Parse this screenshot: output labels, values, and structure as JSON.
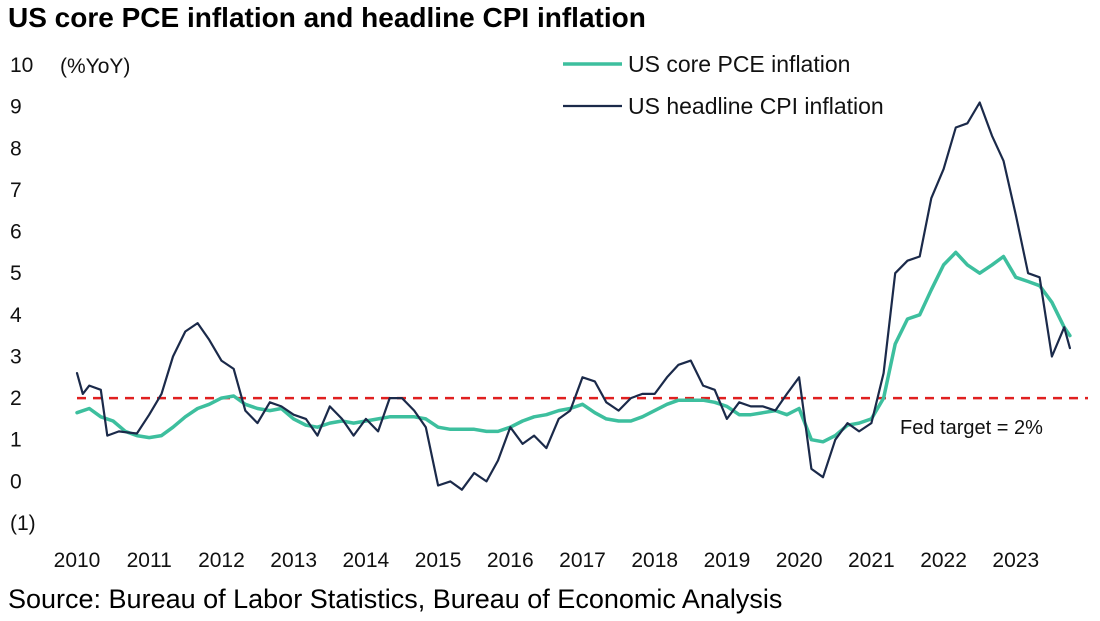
{
  "title": "US core PCE inflation and headline CPI inflation",
  "source": "Source: Bureau of Labor Statistics, Bureau of Economic Analysis",
  "chart_data": {
    "type": "line",
    "unit_label": "(%YoY)",
    "ylim": [
      -1,
      10
    ],
    "y_ticks": [
      {
        "value": 10,
        "label": "10"
      },
      {
        "value": 9,
        "label": "9"
      },
      {
        "value": 8,
        "label": "8"
      },
      {
        "value": 7,
        "label": "7"
      },
      {
        "value": 6,
        "label": "6"
      },
      {
        "value": 5,
        "label": "5"
      },
      {
        "value": 4,
        "label": "4"
      },
      {
        "value": 3,
        "label": "3"
      },
      {
        "value": 2,
        "label": "2"
      },
      {
        "value": 1,
        "label": "1"
      },
      {
        "value": 0,
        "label": "0"
      },
      {
        "value": -1,
        "label": "(1)"
      }
    ],
    "x_ticks": [
      "2010",
      "2011",
      "2012",
      "2013",
      "2014",
      "2015",
      "2016",
      "2017",
      "2018",
      "2019",
      "2020",
      "2021",
      "2022",
      "2023"
    ],
    "grid": false,
    "legend_position": "top-right",
    "reference_line": {
      "value": 2,
      "label": "Fed target = 2%",
      "color": "#e02020",
      "style": "dashed"
    },
    "series": [
      {
        "name": "US core PCE inflation",
        "color": "#3dbf9e",
        "points": [
          [
            2010.0,
            1.65
          ],
          [
            2010.17,
            1.75
          ],
          [
            2010.33,
            1.55
          ],
          [
            2010.5,
            1.45
          ],
          [
            2010.67,
            1.2
          ],
          [
            2010.83,
            1.1
          ],
          [
            2011.0,
            1.05
          ],
          [
            2011.17,
            1.1
          ],
          [
            2011.33,
            1.3
          ],
          [
            2011.5,
            1.55
          ],
          [
            2011.67,
            1.75
          ],
          [
            2011.83,
            1.85
          ],
          [
            2012.0,
            2.0
          ],
          [
            2012.17,
            2.05
          ],
          [
            2012.33,
            1.85
          ],
          [
            2012.5,
            1.75
          ],
          [
            2012.67,
            1.7
          ],
          [
            2012.83,
            1.75
          ],
          [
            2013.0,
            1.5
          ],
          [
            2013.17,
            1.35
          ],
          [
            2013.33,
            1.3
          ],
          [
            2013.5,
            1.4
          ],
          [
            2013.67,
            1.45
          ],
          [
            2013.83,
            1.4
          ],
          [
            2014.0,
            1.45
          ],
          [
            2014.17,
            1.5
          ],
          [
            2014.33,
            1.55
          ],
          [
            2014.5,
            1.55
          ],
          [
            2014.67,
            1.55
          ],
          [
            2014.83,
            1.5
          ],
          [
            2015.0,
            1.3
          ],
          [
            2015.17,
            1.25
          ],
          [
            2015.33,
            1.25
          ],
          [
            2015.5,
            1.25
          ],
          [
            2015.67,
            1.2
          ],
          [
            2015.83,
            1.2
          ],
          [
            2016.0,
            1.3
          ],
          [
            2016.17,
            1.45
          ],
          [
            2016.33,
            1.55
          ],
          [
            2016.5,
            1.6
          ],
          [
            2016.67,
            1.7
          ],
          [
            2016.83,
            1.75
          ],
          [
            2017.0,
            1.85
          ],
          [
            2017.17,
            1.65
          ],
          [
            2017.33,
            1.5
          ],
          [
            2017.5,
            1.45
          ],
          [
            2017.67,
            1.45
          ],
          [
            2017.83,
            1.55
          ],
          [
            2018.0,
            1.7
          ],
          [
            2018.17,
            1.85
          ],
          [
            2018.33,
            1.95
          ],
          [
            2018.5,
            1.95
          ],
          [
            2018.67,
            1.95
          ],
          [
            2018.83,
            1.9
          ],
          [
            2019.0,
            1.8
          ],
          [
            2019.17,
            1.6
          ],
          [
            2019.33,
            1.6
          ],
          [
            2019.5,
            1.65
          ],
          [
            2019.67,
            1.7
          ],
          [
            2019.83,
            1.6
          ],
          [
            2020.0,
            1.75
          ],
          [
            2020.17,
            1.0
          ],
          [
            2020.33,
            0.95
          ],
          [
            2020.5,
            1.1
          ],
          [
            2020.67,
            1.35
          ],
          [
            2020.83,
            1.4
          ],
          [
            2021.0,
            1.5
          ],
          [
            2021.17,
            2.0
          ],
          [
            2021.33,
            3.3
          ],
          [
            2021.5,
            3.9
          ],
          [
            2021.67,
            4.0
          ],
          [
            2021.83,
            4.6
          ],
          [
            2022.0,
            5.2
          ],
          [
            2022.17,
            5.5
          ],
          [
            2022.33,
            5.2
          ],
          [
            2022.5,
            5.0
          ],
          [
            2022.67,
            5.2
          ],
          [
            2022.83,
            5.4
          ],
          [
            2023.0,
            4.9
          ],
          [
            2023.17,
            4.8
          ],
          [
            2023.33,
            4.7
          ],
          [
            2023.5,
            4.3
          ],
          [
            2023.67,
            3.7
          ],
          [
            2023.75,
            3.5
          ]
        ]
      },
      {
        "name": "US headline CPI inflation",
        "color": "#1b2a4a",
        "points": [
          [
            2010.0,
            2.6
          ],
          [
            2010.08,
            2.1
          ],
          [
            2010.17,
            2.3
          ],
          [
            2010.33,
            2.2
          ],
          [
            2010.42,
            1.1
          ],
          [
            2010.58,
            1.2
          ],
          [
            2010.83,
            1.15
          ],
          [
            2011.0,
            1.6
          ],
          [
            2011.17,
            2.1
          ],
          [
            2011.33,
            3.0
          ],
          [
            2011.5,
            3.6
          ],
          [
            2011.67,
            3.8
          ],
          [
            2011.83,
            3.4
          ],
          [
            2012.0,
            2.9
          ],
          [
            2012.17,
            2.7
          ],
          [
            2012.33,
            1.7
          ],
          [
            2012.5,
            1.4
          ],
          [
            2012.67,
            1.9
          ],
          [
            2012.83,
            1.8
          ],
          [
            2013.0,
            1.6
          ],
          [
            2013.17,
            1.5
          ],
          [
            2013.33,
            1.1
          ],
          [
            2013.5,
            1.8
          ],
          [
            2013.67,
            1.5
          ],
          [
            2013.83,
            1.1
          ],
          [
            2014.0,
            1.5
          ],
          [
            2014.17,
            1.2
          ],
          [
            2014.33,
            2.0
          ],
          [
            2014.5,
            2.0
          ],
          [
            2014.67,
            1.7
          ],
          [
            2014.83,
            1.3
          ],
          [
            2015.0,
            -0.1
          ],
          [
            2015.17,
            0.0
          ],
          [
            2015.33,
            -0.2
          ],
          [
            2015.5,
            0.2
          ],
          [
            2015.67,
            0.0
          ],
          [
            2015.83,
            0.5
          ],
          [
            2016.0,
            1.3
          ],
          [
            2016.17,
            0.9
          ],
          [
            2016.33,
            1.1
          ],
          [
            2016.5,
            0.8
          ],
          [
            2016.67,
            1.5
          ],
          [
            2016.83,
            1.7
          ],
          [
            2017.0,
            2.5
          ],
          [
            2017.17,
            2.4
          ],
          [
            2017.33,
            1.9
          ],
          [
            2017.5,
            1.7
          ],
          [
            2017.67,
            2.0
          ],
          [
            2017.83,
            2.1
          ],
          [
            2018.0,
            2.1
          ],
          [
            2018.17,
            2.5
          ],
          [
            2018.33,
            2.8
          ],
          [
            2018.5,
            2.9
          ],
          [
            2018.67,
            2.3
          ],
          [
            2018.83,
            2.2
          ],
          [
            2019.0,
            1.5
          ],
          [
            2019.17,
            1.9
          ],
          [
            2019.33,
            1.8
          ],
          [
            2019.5,
            1.8
          ],
          [
            2019.67,
            1.7
          ],
          [
            2019.83,
            2.1
          ],
          [
            2020.0,
            2.5
          ],
          [
            2020.17,
            0.3
          ],
          [
            2020.33,
            0.1
          ],
          [
            2020.5,
            1.0
          ],
          [
            2020.67,
            1.4
          ],
          [
            2020.83,
            1.2
          ],
          [
            2021.0,
            1.4
          ],
          [
            2021.17,
            2.6
          ],
          [
            2021.33,
            5.0
          ],
          [
            2021.5,
            5.3
          ],
          [
            2021.67,
            5.4
          ],
          [
            2021.83,
            6.8
          ],
          [
            2022.0,
            7.5
          ],
          [
            2022.17,
            8.5
          ],
          [
            2022.33,
            8.6
          ],
          [
            2022.5,
            9.1
          ],
          [
            2022.67,
            8.3
          ],
          [
            2022.83,
            7.7
          ],
          [
            2023.0,
            6.4
          ],
          [
            2023.17,
            5.0
          ],
          [
            2023.33,
            4.9
          ],
          [
            2023.5,
            3.0
          ],
          [
            2023.67,
            3.7
          ],
          [
            2023.75,
            3.2
          ]
        ]
      }
    ]
  }
}
